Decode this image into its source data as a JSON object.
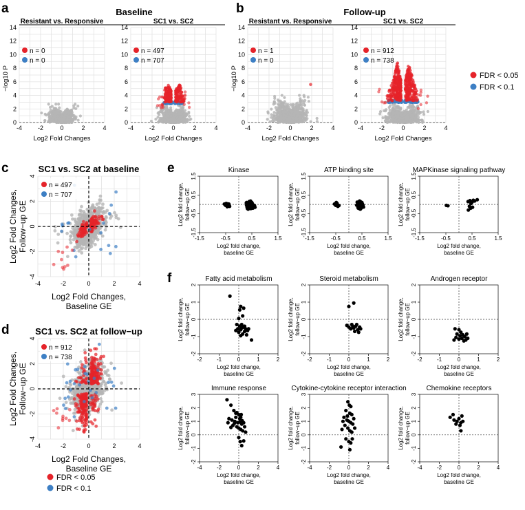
{
  "sections": {
    "a": {
      "letter": "a",
      "title": "Baseline"
    },
    "b": {
      "letter": "b",
      "title": "Follow-up"
    },
    "c": {
      "letter": "c"
    },
    "d": {
      "letter": "d"
    },
    "e": {
      "letter": "e"
    },
    "f": {
      "letter": "f"
    }
  },
  "legend": {
    "fdr005": {
      "label": "FDR < 0.05",
      "color": "#e5232a"
    },
    "fdr01": {
      "label": "FDR < 0.1",
      "color": "#3d7fc4"
    }
  },
  "chart_data": [
    {
      "id": "a1",
      "type": "scatter",
      "title": "Resistant vs. Responsive",
      "xlabel": "Log2 Fold Changes",
      "ylabel": "−log10 P",
      "xlim": [
        -4,
        4
      ],
      "ylim": [
        0,
        14
      ],
      "xticks": [
        -4,
        -2,
        0,
        2,
        4
      ],
      "yticks": [
        0,
        2,
        4,
        6,
        8,
        10,
        12,
        14
      ],
      "counts": {
        "fdr005": "n = 0",
        "fdr01": "n = 0"
      },
      "cloud": {
        "x_sd": 0.55,
        "y_max": 2.7,
        "n": 700
      },
      "sig": {
        "n005": 0,
        "n01": 0
      }
    },
    {
      "id": "a2",
      "type": "scatter",
      "title": "SC1 vs. SC2",
      "xlabel": "Log2 Fold Changes",
      "ylabel": "",
      "xlim": [
        -4,
        4
      ],
      "ylim": [
        0,
        14
      ],
      "xticks": [
        -4,
        -2,
        0,
        2,
        4
      ],
      "yticks": [
        0,
        2,
        4,
        6,
        8,
        10,
        12,
        14
      ],
      "counts": {
        "fdr005": "n = 497",
        "fdr01": "n = 707"
      },
      "cloud": {
        "x_sd": 0.55,
        "y_max": 2.8,
        "n": 700
      },
      "sig": {
        "n005": 497,
        "n01": 707,
        "y_thr": 3.0,
        "y_top": 6.0,
        "x_spread": 0.9
      }
    },
    {
      "id": "b1",
      "type": "scatter",
      "title": "Resistant vs. Responsive",
      "xlabel": "Log2 Fold Changes",
      "ylabel": "−log10 P",
      "xlim": [
        -4,
        4
      ],
      "ylim": [
        0,
        14
      ],
      "xticks": [
        -4,
        -2,
        0,
        2,
        4
      ],
      "yticks": [
        0,
        2,
        4,
        6,
        8,
        10,
        12,
        14
      ],
      "counts": {
        "fdr005": "n = 1",
        "fdr01": "n = 0"
      },
      "cloud": {
        "x_sd": 0.7,
        "y_max": 4.0,
        "n": 800
      },
      "sig": {
        "n005": 1,
        "n01": 0,
        "single": [
          1.9,
          5.6
        ]
      }
    },
    {
      "id": "b2",
      "type": "scatter",
      "title": "SC1 vs. SC2",
      "xlabel": "Log2 Fold Changes",
      "ylabel": "",
      "xlim": [
        -4,
        4
      ],
      "ylim": [
        0,
        14
      ],
      "xticks": [
        -4,
        -2,
        0,
        2,
        4
      ],
      "yticks": [
        0,
        2,
        4,
        6,
        8,
        10,
        12,
        14
      ],
      "counts": {
        "fdr005": "n = 912",
        "fdr01": "n = 738"
      },
      "cloud": {
        "x_sd": 0.7,
        "y_max": 3.0,
        "n": 700
      },
      "sig": {
        "n005": 912,
        "n01": 738,
        "y_thr": 3.2,
        "y_top": 9.0,
        "x_spread": 1.4
      }
    },
    {
      "id": "c",
      "type": "scatter",
      "title": "SC1 vs. SC2 at baseline",
      "xlabel": "Log2 Fold Changes,\nBaseline GE",
      "ylabel": "Log2 Fold Changes,\nFollow−up GE",
      "xlim": [
        -4,
        4
      ],
      "ylim": [
        -4,
        4
      ],
      "xticks": [
        -4,
        -2,
        0,
        2,
        4
      ],
      "yticks": [
        -4,
        -2,
        0,
        2,
        4
      ],
      "counts": {
        "fdr005": "n = 497",
        "fdr01": "n = 707"
      }
    },
    {
      "id": "d",
      "type": "scatter",
      "title": "SC1 vs. SC2 at follow−up",
      "xlabel": "Log2 Fold Changes,\nBaseline GE",
      "ylabel": "Log2 Fold Changes,\nFollow−up GE",
      "xlim": [
        -4,
        4
      ],
      "ylim": [
        -4,
        4
      ],
      "xticks": [
        -4,
        -2,
        0,
        2,
        4
      ],
      "yticks": [
        -4,
        -2,
        0,
        2,
        4
      ],
      "counts": {
        "fdr005": "n = 912",
        "fdr01": "n = 738"
      }
    },
    {
      "id": "e1",
      "type": "scatter",
      "title": "Kinase",
      "xlabel": "Log2 fold change,\nbaseline GE",
      "ylabel": "Log2 fold change,\nfollow−up GE",
      "xlim": [
        -1.5,
        1.5
      ],
      "ylim": [
        -1.5,
        1.5
      ],
      "xticks": [
        -1.5,
        -0.5,
        0.5,
        1.5
      ],
      "yticks": [
        -1.5,
        -0.5,
        0.5,
        1.5
      ],
      "points": [
        [
          -0.55,
          0.02
        ],
        [
          -0.5,
          -0.05
        ],
        [
          -0.45,
          0.0
        ],
        [
          -0.4,
          -0.08
        ],
        [
          -0.48,
          0.05
        ],
        [
          -0.42,
          0.03
        ],
        [
          -0.52,
          -0.02
        ],
        [
          -0.38,
          0.02
        ],
        [
          -0.35,
          -0.1
        ],
        [
          -0.44,
          -0.12
        ],
        [
          0.3,
          0.1
        ],
        [
          0.35,
          0.05
        ],
        [
          0.4,
          0.0
        ],
        [
          0.45,
          -0.05
        ],
        [
          0.5,
          -0.1
        ],
        [
          0.32,
          -0.15
        ],
        [
          0.38,
          -0.2
        ],
        [
          0.42,
          0.12
        ],
        [
          0.48,
          0.08
        ],
        [
          0.55,
          -0.02
        ],
        [
          0.36,
          -0.25
        ],
        [
          0.44,
          -0.18
        ],
        [
          0.52,
          0.04
        ],
        [
          0.3,
          -0.05
        ],
        [
          0.4,
          0.15
        ],
        [
          0.46,
          -0.22
        ],
        [
          0.58,
          -0.12
        ],
        [
          0.34,
          0.0
        ],
        [
          0.5,
          0.1
        ],
        [
          0.6,
          -0.06
        ],
        [
          0.41,
          -0.1
        ],
        [
          0.47,
          0.02
        ],
        [
          0.33,
          -0.22
        ],
        [
          0.54,
          -0.2
        ],
        [
          0.38,
          0.08
        ],
        [
          0.62,
          -0.15
        ],
        [
          0.45,
          0.18
        ],
        [
          0.29,
          0.08
        ]
      ]
    },
    {
      "id": "e2",
      "type": "scatter",
      "title": "ATP binding site",
      "xlabel": "Log2 fold change,\nbaseline GE",
      "ylabel": "Log2 fold change,\nfollow−up GE",
      "xlim": [
        -1.5,
        1.5
      ],
      "ylim": [
        -1.5,
        1.5
      ],
      "xticks": [
        -1.5,
        -0.5,
        0.5,
        1.5
      ],
      "yticks": [
        -1.5,
        -0.5,
        0.5,
        1.5
      ],
      "points": [
        [
          -0.55,
          0.02
        ],
        [
          -0.5,
          -0.05
        ],
        [
          -0.45,
          0.05
        ],
        [
          -0.42,
          -0.1
        ],
        [
          -0.48,
          0.1
        ],
        [
          -0.38,
          -0.06
        ],
        [
          0.32,
          0.12
        ],
        [
          0.38,
          0.05
        ],
        [
          0.42,
          0.0
        ],
        [
          0.46,
          -0.08
        ],
        [
          0.5,
          -0.12
        ],
        [
          0.35,
          -0.15
        ],
        [
          0.4,
          -0.22
        ],
        [
          0.44,
          0.15
        ],
        [
          0.48,
          0.06
        ],
        [
          0.54,
          -0.04
        ],
        [
          0.36,
          -0.2
        ],
        [
          0.44,
          -0.25
        ],
        [
          0.52,
          0.02
        ],
        [
          0.3,
          -0.04
        ],
        [
          0.41,
          0.18
        ],
        [
          0.47,
          -0.2
        ],
        [
          0.56,
          -0.14
        ],
        [
          0.34,
          0.05
        ],
        [
          0.5,
          0.1
        ],
        [
          0.39,
          -0.1
        ]
      ]
    },
    {
      "id": "e3",
      "type": "scatter",
      "title": "MAPKinase signaling pathway",
      "xlabel": "Log2 fold change,\nbaseline GE",
      "ylabel": "Log2 fold change,\nfollow−up GE",
      "xlim": [
        -1.5,
        1.5
      ],
      "ylim": [
        -1.5,
        1.5
      ],
      "xticks": [
        -1.5,
        -0.5,
        0.5,
        1.5
      ],
      "yticks": [
        -1.5,
        -0.5,
        0.5,
        1.5
      ],
      "points": [
        [
          -0.48,
          -0.05
        ],
        [
          -0.42,
          -0.07
        ],
        [
          0.35,
          0.15
        ],
        [
          0.42,
          0.2
        ],
        [
          0.5,
          0.12
        ],
        [
          0.55,
          0.22
        ],
        [
          0.7,
          0.25
        ],
        [
          0.4,
          -0.1
        ],
        [
          0.45,
          -0.2
        ],
        [
          0.36,
          -0.3
        ],
        [
          0.52,
          -0.15
        ],
        [
          0.46,
          0.05
        ],
        [
          0.6,
          0.18
        ]
      ]
    },
    {
      "id": "f1",
      "type": "scatter",
      "title": "Fatty acid metabolism",
      "xlabel": "Log2 fold change,\nbaseline GE",
      "ylabel": "Log2 fold change,\nfollow−up GE",
      "xlim": [
        -2,
        2
      ],
      "ylim": [
        -2,
        2
      ],
      "xticks": [
        -2,
        -1,
        0,
        1,
        2
      ],
      "yticks": [
        -2,
        -1,
        0,
        1,
        2
      ],
      "points": [
        [
          -0.45,
          1.35
        ],
        [
          0.1,
          0.75
        ],
        [
          0.25,
          0.65
        ],
        [
          0.05,
          0.55
        ],
        [
          0.2,
          0.2
        ],
        [
          0.0,
          0.05
        ],
        [
          -0.1,
          -0.3
        ],
        [
          0.05,
          -0.4
        ],
        [
          0.15,
          -0.5
        ],
        [
          0.25,
          -0.45
        ],
        [
          0.35,
          -0.55
        ],
        [
          0.1,
          -0.6
        ],
        [
          -0.05,
          -0.55
        ],
        [
          0.3,
          -0.7
        ],
        [
          0.45,
          -0.65
        ],
        [
          0.2,
          -0.85
        ],
        [
          0.4,
          -0.9
        ],
        [
          0.65,
          -1.2
        ],
        [
          0.0,
          -0.75
        ],
        [
          0.1,
          -0.95
        ],
        [
          0.3,
          -0.4
        ],
        [
          0.5,
          -0.55
        ],
        [
          -0.15,
          -0.65
        ],
        [
          0.15,
          -0.3
        ]
      ]
    },
    {
      "id": "f2",
      "type": "scatter",
      "title": "Steroid metabolism",
      "xlabel": "Log2 fold change,\nbaseline GE",
      "ylabel": "Log2 fold change,\nfollow−up GE",
      "xlim": [
        -2,
        2
      ],
      "ylim": [
        -2,
        2
      ],
      "xticks": [
        -2,
        -1,
        0,
        1,
        2
      ],
      "yticks": [
        -2,
        -1,
        0,
        1,
        2
      ],
      "points": [
        [
          0.0,
          0.75
        ],
        [
          0.25,
          0.95
        ],
        [
          -0.1,
          -0.35
        ],
        [
          0.0,
          -0.45
        ],
        [
          0.15,
          -0.3
        ],
        [
          0.25,
          -0.5
        ],
        [
          0.35,
          -0.4
        ],
        [
          0.45,
          -0.6
        ],
        [
          0.5,
          -0.75
        ],
        [
          0.3,
          -0.7
        ],
        [
          0.6,
          -0.55
        ],
        [
          0.1,
          -0.55
        ],
        [
          0.4,
          -0.3
        ],
        [
          0.2,
          -0.4
        ],
        [
          0.55,
          -0.45
        ]
      ]
    },
    {
      "id": "f3",
      "type": "scatter",
      "title": "Androgen receptor",
      "xlabel": "Log2 fold change,\nbaseline GE",
      "ylabel": "Log2 fold change,\nfollow−up GE",
      "xlim": [
        -2,
        2
      ],
      "ylim": [
        -2,
        2
      ],
      "xticks": [
        -2,
        -1,
        0,
        1,
        2
      ],
      "yticks": [
        -2,
        -1,
        0,
        1,
        2
      ],
      "points": [
        [
          -0.2,
          -0.55
        ],
        [
          0.0,
          -0.6
        ],
        [
          0.1,
          -0.75
        ],
        [
          -0.1,
          -0.85
        ],
        [
          0.2,
          -0.9
        ],
        [
          0.3,
          -1.0
        ],
        [
          0.15,
          -1.1
        ],
        [
          0.0,
          -1.15
        ],
        [
          -0.15,
          -1.05
        ],
        [
          0.35,
          -1.2
        ],
        [
          0.45,
          -1.1
        ],
        [
          0.25,
          -1.25
        ],
        [
          0.05,
          -0.95
        ],
        [
          -0.25,
          -1.2
        ],
        [
          0.4,
          -0.85
        ]
      ]
    },
    {
      "id": "f4",
      "type": "scatter",
      "title": "Immune response",
      "xlabel": "Log2 fold change,\nbaseline GE",
      "ylabel": "Log2 fold change,\nfollow−up GE",
      "xlim": [
        -4,
        4
      ],
      "ylim": [
        -2,
        3
      ],
      "xticks": [
        -4,
        -2,
        0,
        2,
        4
      ],
      "yticks": [
        -2,
        -1,
        0,
        1,
        2,
        3
      ],
      "points": [
        [
          -1.2,
          2.6
        ],
        [
          -0.8,
          2.2
        ],
        [
          -0.5,
          1.8
        ],
        [
          -0.3,
          1.6
        ],
        [
          0.0,
          1.5
        ],
        [
          0.2,
          1.3
        ],
        [
          -1.0,
          1.2
        ],
        [
          -0.7,
          1.1
        ],
        [
          -0.4,
          1.0
        ],
        [
          -0.1,
          0.9
        ],
        [
          0.1,
          0.95
        ],
        [
          0.3,
          0.8
        ],
        [
          0.5,
          0.9
        ],
        [
          -0.6,
          0.7
        ],
        [
          -0.2,
          0.6
        ],
        [
          0.0,
          0.5
        ],
        [
          0.2,
          0.4
        ],
        [
          0.4,
          0.3
        ],
        [
          -0.8,
          0.55
        ],
        [
          0.6,
          0.6
        ],
        [
          -0.3,
          1.3
        ],
        [
          0.1,
          1.2
        ],
        [
          -1.1,
          0.9
        ],
        [
          0.35,
          1.05
        ],
        [
          0.0,
          -0.2
        ],
        [
          0.15,
          -0.5
        ],
        [
          0.3,
          -0.8
        ],
        [
          0.5,
          -0.45
        ],
        [
          -0.2,
          1.65
        ],
        [
          -0.45,
          0.85
        ],
        [
          0.25,
          1.5
        ],
        [
          0.7,
          0.2
        ]
      ]
    },
    {
      "id": "f5",
      "type": "scatter",
      "title": "Cytokine-cytokine receptor interaction",
      "xlabel": "Log2 fold change,\nbaseline GE",
      "ylabel": "Log2 fold change,\nfollow−up GE",
      "xlim": [
        -4,
        4
      ],
      "ylim": [
        -2,
        3
      ],
      "xticks": [
        -4,
        -2,
        0,
        2,
        4
      ],
      "yticks": [
        -2,
        -1,
        0,
        1,
        2,
        3
      ],
      "points": [
        [
          -0.1,
          2.45
        ],
        [
          0.05,
          2.2
        ],
        [
          0.2,
          2.1
        ],
        [
          -0.3,
          1.8
        ],
        [
          0.1,
          1.6
        ],
        [
          0.3,
          1.5
        ],
        [
          -0.5,
          1.3
        ],
        [
          -0.2,
          1.1
        ],
        [
          0.0,
          1.0
        ],
        [
          0.2,
          0.9
        ],
        [
          0.4,
          0.8
        ],
        [
          -0.4,
          0.7
        ],
        [
          -0.1,
          0.5
        ],
        [
          0.1,
          0.3
        ],
        [
          0.3,
          0.2
        ],
        [
          -0.6,
          1.0
        ],
        [
          0.5,
          1.2
        ],
        [
          -0.3,
          -0.3
        ],
        [
          0.0,
          -0.5
        ],
        [
          0.2,
          -0.6
        ],
        [
          -0.8,
          -0.9
        ],
        [
          0.1,
          -1.1
        ],
        [
          0.35,
          -0.3
        ],
        [
          -0.15,
          1.4
        ],
        [
          0.6,
          0.5
        ],
        [
          -0.7,
          0.4
        ]
      ]
    },
    {
      "id": "f6",
      "type": "scatter",
      "title": "Chemokine receptors",
      "xlabel": "Log2 fold change,\nbaseline GE",
      "ylabel": "Log2 fold change,\nfollow−up GE",
      "xlim": [
        -4,
        4
      ],
      "ylim": [
        -2,
        3
      ],
      "xticks": [
        -4,
        -2,
        0,
        2,
        4
      ],
      "yticks": [
        -2,
        -1,
        0,
        1,
        2,
        3
      ],
      "points": [
        [
          -0.9,
          1.3
        ],
        [
          -0.5,
          1.1
        ],
        [
          -0.2,
          1.0
        ],
        [
          0.0,
          1.2
        ],
        [
          0.2,
          0.9
        ],
        [
          0.3,
          1.4
        ],
        [
          0.1,
          0.7
        ],
        [
          -0.3,
          0.8
        ],
        [
          0.4,
          1.0
        ],
        [
          0.2,
          0.3
        ],
        [
          -0.6,
          1.5
        ]
      ]
    }
  ]
}
